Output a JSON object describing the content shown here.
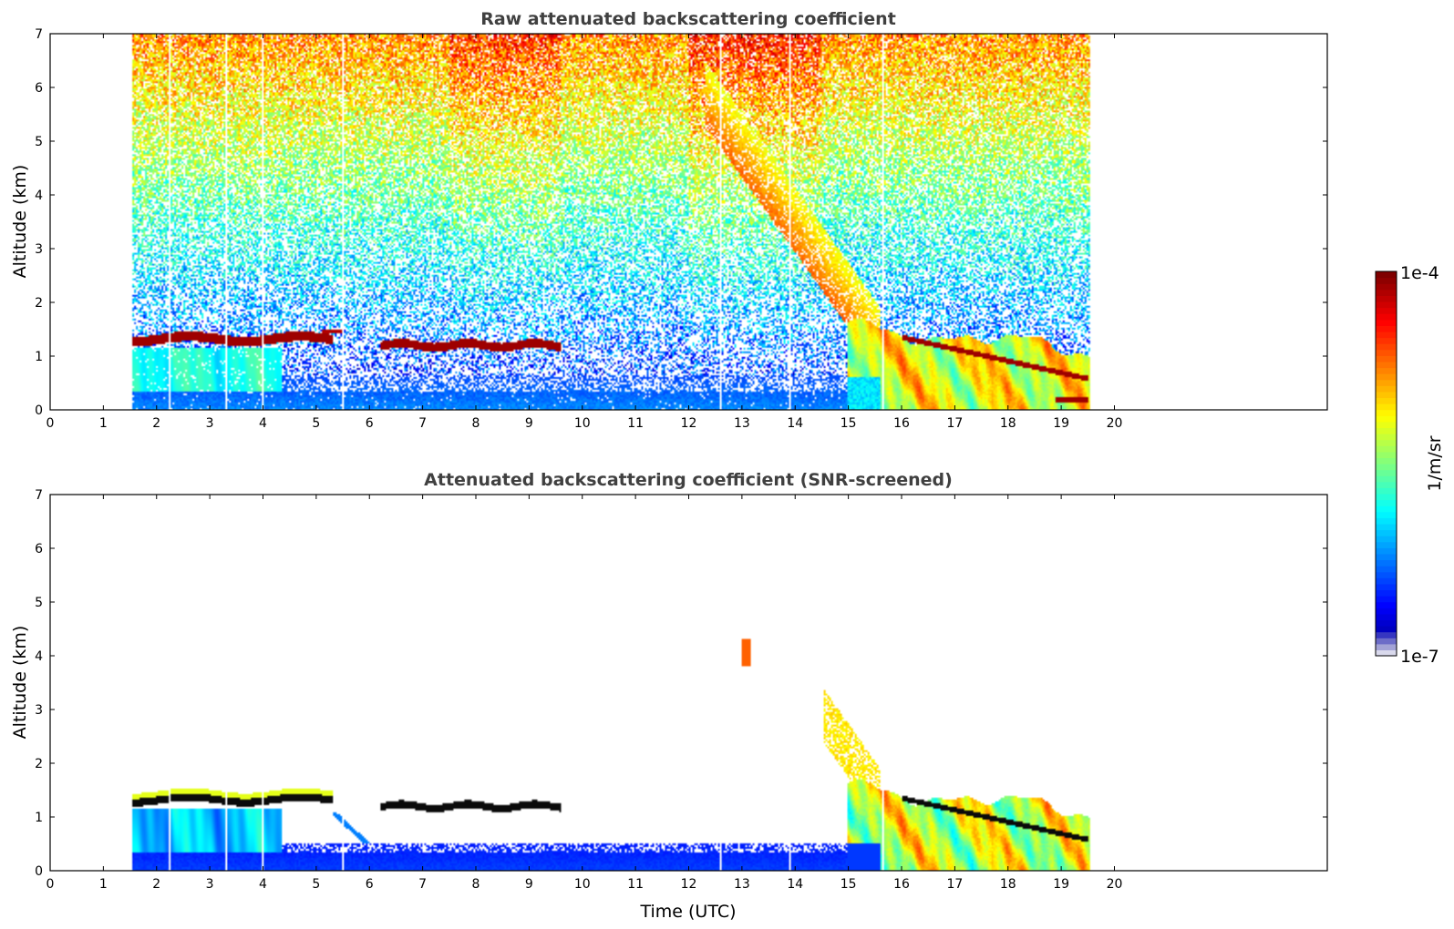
{
  "colors": {
    "jet": [
      "#00007f",
      "#0000ff",
      "#007fff",
      "#00ffff",
      "#7fff7f",
      "#ffff00",
      "#ff7f00",
      "#ff0000",
      "#7f0000"
    ],
    "axis": "#000000",
    "title": "#404040"
  },
  "chart_data": [
    {
      "type": "heatmap",
      "title": "Raw attenuated backscattering coefficient",
      "xlabel": "",
      "ylabel": "Altitude (km)",
      "xlim": [
        0,
        24
      ],
      "ylim": [
        0,
        7
      ],
      "x_ticks": [
        "0",
        "1",
        "2",
        "3",
        "4",
        "5",
        "6",
        "7",
        "8",
        "9",
        "10",
        "11",
        "12",
        "13",
        "14",
        "15",
        "16",
        "17",
        "18",
        "19",
        "20"
      ],
      "y_ticks": [
        "0",
        "1",
        "2",
        "3",
        "4",
        "5",
        "6",
        "7"
      ],
      "data_time_range": [
        1.55,
        19.55
      ],
      "features": [
        {
          "description": "cloud layer",
          "t": [
            1.55,
            5.3
          ],
          "alt": [
            1.2,
            1.4
          ],
          "value": 0.98
        },
        {
          "description": "cloud layer",
          "t": [
            6.2,
            9.6
          ],
          "alt": [
            1.15,
            1.3
          ],
          "value": 0.98
        },
        {
          "description": "boundary layer",
          "t": [
            1.55,
            19.55
          ],
          "alt": [
            0,
            0.6
          ],
          "value": 0.18
        },
        {
          "description": "descending plume",
          "t": [
            12.3,
            15.6
          ],
          "alt_top": [
            6.5,
            1.7
          ],
          "value": 0.7
        },
        {
          "description": "aerosol/cloud",
          "t": [
            15.0,
            19.55
          ],
          "alt": [
            0,
            1.6
          ],
          "value": 0.72
        }
      ]
    },
    {
      "type": "heatmap",
      "title": "Attenuated backscattering coefficient (SNR-screened)",
      "xlabel": "Time (UTC)",
      "ylabel": "Altitude (km)",
      "xlim": [
        0,
        24
      ],
      "ylim": [
        0,
        7
      ],
      "x_ticks": [
        "0",
        "1",
        "2",
        "3",
        "4",
        "5",
        "6",
        "7",
        "8",
        "9",
        "10",
        "11",
        "12",
        "13",
        "14",
        "15",
        "16",
        "17",
        "18",
        "19",
        "20"
      ],
      "y_ticks": [
        "0",
        "1",
        "2",
        "3",
        "4",
        "5",
        "6",
        "7"
      ],
      "data_time_range": [
        1.55,
        19.55
      ]
    }
  ],
  "colorbar": {
    "label": "1/m/sr",
    "max_label": "1e-4",
    "min_label": "1e-7",
    "scale": "log",
    "range": [
      1e-07,
      0.0001
    ]
  }
}
